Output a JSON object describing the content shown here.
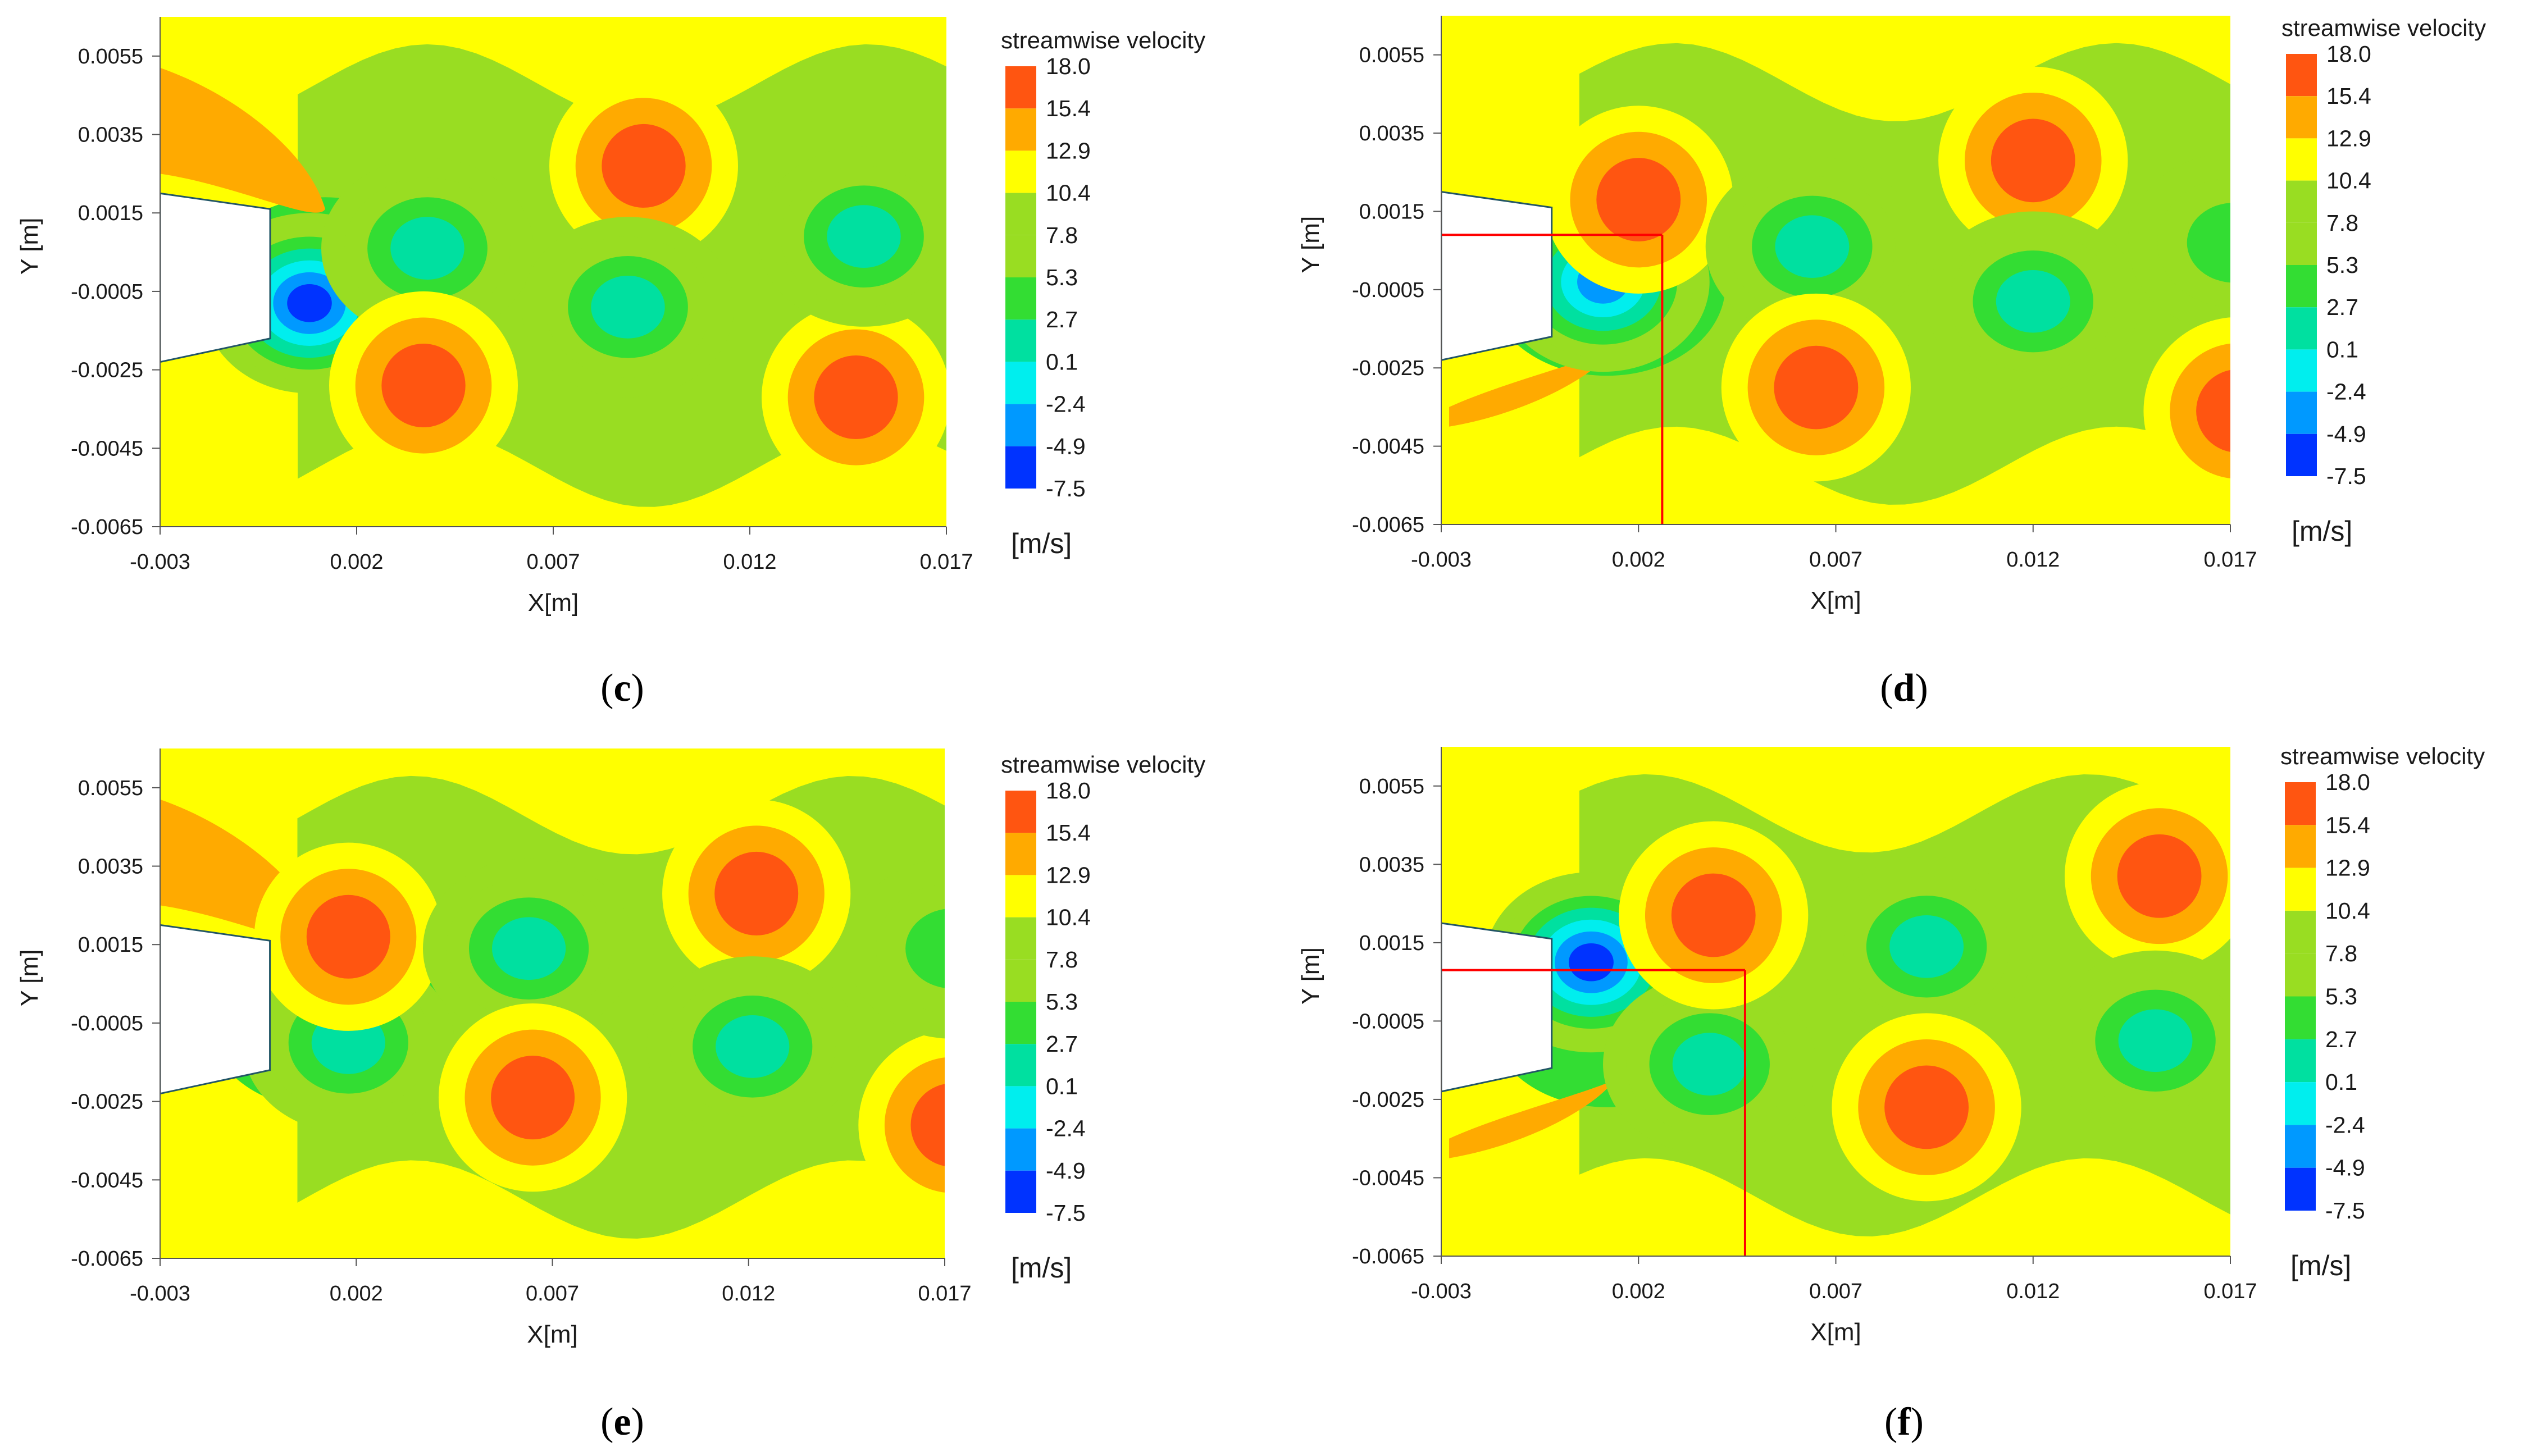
{
  "colors": {
    "background": "#ffff00",
    "body": "#ffffff",
    "marker_line": "#ff0000",
    "scale": [
      "#0033ff",
      "#0099ff",
      "#00eeee",
      "#00e0a0",
      "#33dd33",
      "#99dd22",
      "#ffff00",
      "#ffaa00",
      "#ff5511"
    ]
  },
  "chart_data": [
    {
      "type": "heatmap",
      "panel": "c",
      "panel_label": "c",
      "quantity": "streamwise velocity",
      "unit": "[m/s]",
      "xlabel": "X[m]",
      "ylabel": "Y [m]",
      "xlim": [
        -0.003,
        0.017
      ],
      "ylim": [
        -0.0065,
        0.0065
      ],
      "xticks": [
        "-0.003",
        "0.002",
        "0.007",
        "0.012",
        "0.017"
      ],
      "yticks": [
        "0.0055",
        "0.0035",
        "0.0015",
        "-0.0005",
        "-0.0025",
        "-0.0045",
        "-0.0065"
      ],
      "levels": [
        "18.0",
        "15.4",
        "12.9",
        "10.4",
        "7.8",
        "5.3",
        "2.7",
        "0.1",
        "-2.4",
        "-4.9",
        "-7.5"
      ],
      "marker": null,
      "flags": {
        "upper_jet": true,
        "lower_jet": false,
        "wake_low": "lower"
      },
      "vortices": [
        {
          "x": 0.0008,
          "y": -0.0008,
          "peak": -7.5
        },
        {
          "x": 0.0038,
          "y": 0.0006,
          "peak": 0.1
        },
        {
          "x": 0.0037,
          "y": -0.0029,
          "peak": 18.0
        },
        {
          "x": 0.0093,
          "y": 0.0027,
          "peak": 18.0
        },
        {
          "x": 0.0089,
          "y": -0.0009,
          "peak": 0.1
        },
        {
          "x": 0.0147,
          "y": -0.0032,
          "peak": 18.0
        },
        {
          "x": 0.0149,
          "y": 0.0009,
          "peak": 0.1
        }
      ]
    },
    {
      "type": "heatmap",
      "panel": "d",
      "panel_label": "d",
      "quantity": "streamwise velocity",
      "unit": "[m/s]",
      "xlabel": "X[m]",
      "ylabel": "Y [m]",
      "xlim": [
        -0.003,
        0.017
      ],
      "ylim": [
        -0.0065,
        0.0065
      ],
      "xticks": [
        "-0.003",
        "0.002",
        "0.007",
        "0.012",
        "0.017"
      ],
      "yticks": [
        "0.0055",
        "0.0035",
        "0.0015",
        "-0.0005",
        "-0.0025",
        "-0.0045",
        "-0.0065"
      ],
      "levels": [
        "18.0",
        "15.4",
        "12.9",
        "10.4",
        "7.8",
        "5.3",
        "2.7",
        "0.1",
        "-2.4",
        "-4.9",
        "-7.5"
      ],
      "marker": {
        "x": 0.0026,
        "y": 0.0009
      },
      "flags": {
        "upper_jet": false,
        "lower_jet": true,
        "wake_low": "center"
      },
      "vortices": [
        {
          "x": 0.0011,
          "y": -0.0003,
          "peak": -4.9
        },
        {
          "x": 0.002,
          "y": 0.0018,
          "peak": 18.0
        },
        {
          "x": 0.0064,
          "y": 0.0006,
          "peak": 0.1
        },
        {
          "x": 0.0065,
          "y": -0.003,
          "peak": 18.0
        },
        {
          "x": 0.012,
          "y": 0.0028,
          "peak": 18.0
        },
        {
          "x": 0.012,
          "y": -0.0008,
          "peak": 0.1
        },
        {
          "x": 0.0171,
          "y": 0.0007,
          "peak": 2.7
        },
        {
          "x": 0.0172,
          "y": -0.0036,
          "peak": 18.0
        }
      ]
    },
    {
      "type": "heatmap",
      "panel": "e",
      "panel_label": "e",
      "quantity": "streamwise velocity",
      "unit": "[m/s]",
      "xlabel": "X[m]",
      "ylabel": "Y [m]",
      "xlim": [
        -0.003,
        0.017
      ],
      "ylim": [
        -0.0065,
        0.0065
      ],
      "xticks": [
        "-0.003",
        "0.002",
        "0.007",
        "0.012",
        "0.017"
      ],
      "yticks": [
        "0.0055",
        "0.0035",
        "0.0015",
        "-0.0005",
        "-0.0025",
        "-0.0045",
        "-0.0065"
      ],
      "levels": [
        "18.0",
        "15.4",
        "12.9",
        "10.4",
        "7.8",
        "5.3",
        "2.7",
        "0.1",
        "-2.4",
        "-4.9",
        "-7.5"
      ],
      "marker": null,
      "flags": {
        "upper_jet": true,
        "lower_jet": false,
        "wake_low": "center"
      },
      "vortices": [
        {
          "x": 0.0018,
          "y": -0.001,
          "peak": 0.1
        },
        {
          "x": 0.0018,
          "y": 0.0017,
          "peak": 18.0
        },
        {
          "x": 0.0064,
          "y": 0.0014,
          "peak": 0.1
        },
        {
          "x": 0.0065,
          "y": -0.0024,
          "peak": 18.0
        },
        {
          "x": 0.0122,
          "y": 0.0028,
          "peak": 18.0
        },
        {
          "x": 0.0121,
          "y": -0.0011,
          "peak": 0.1
        },
        {
          "x": 0.0172,
          "y": -0.0031,
          "peak": 18.0
        },
        {
          "x": 0.0172,
          "y": 0.0014,
          "peak": 2.7
        }
      ]
    },
    {
      "type": "heatmap",
      "panel": "f",
      "panel_label": "f",
      "quantity": "streamwise velocity",
      "unit": "[m/s]",
      "xlabel": "X[m]",
      "ylabel": "Y [m]",
      "xlim": [
        -0.003,
        0.017
      ],
      "ylim": [
        -0.0065,
        0.0065
      ],
      "xticks": [
        "-0.003",
        "0.002",
        "0.007",
        "0.012",
        "0.017"
      ],
      "yticks": [
        "0.0055",
        "0.0035",
        "0.0015",
        "-0.0005",
        "-0.0025",
        "-0.0045",
        "-0.0065"
      ],
      "levels": [
        "18.0",
        "15.4",
        "12.9",
        "10.4",
        "7.8",
        "5.3",
        "2.7",
        "0.1",
        "-2.4",
        "-4.9",
        "-7.5"
      ],
      "marker": {
        "x": 0.0047,
        "y": 0.0008
      },
      "flags": {
        "upper_jet": false,
        "lower_jet": true,
        "wake_low": "center"
      },
      "vortices": [
        {
          "x": 0.0008,
          "y": 0.001,
          "peak": -7.5
        },
        {
          "x": 0.0038,
          "y": -0.0016,
          "peak": 0.1
        },
        {
          "x": 0.0039,
          "y": 0.0022,
          "peak": 18.0
        },
        {
          "x": 0.0093,
          "y": 0.0014,
          "peak": 0.1
        },
        {
          "x": 0.0093,
          "y": -0.0027,
          "peak": 18.0
        },
        {
          "x": 0.0152,
          "y": 0.0032,
          "peak": 18.0
        },
        {
          "x": 0.0151,
          "y": -0.001,
          "peak": 0.1
        }
      ]
    }
  ]
}
